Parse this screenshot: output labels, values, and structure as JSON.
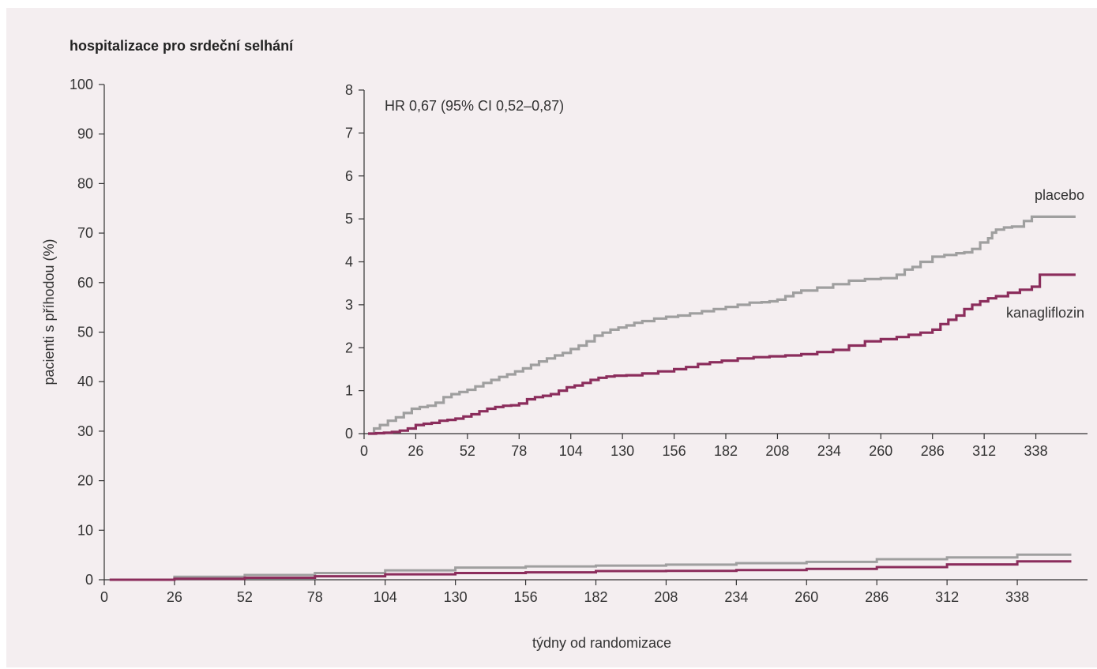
{
  "colors": {
    "background": "#f4eef0",
    "placebo": "#9f9f9f",
    "kanagliflozin": "#8b2d5c",
    "axis": "#333333"
  },
  "chart_data": [
    {
      "type": "line",
      "role": "main",
      "title": "hospitalizace pro srdeční selhání",
      "xlabel": "týdny od randomizace",
      "ylabel": "pacienti s  příhodou (%)",
      "xlim": [
        0,
        364
      ],
      "ylim": [
        0,
        100
      ],
      "xticks": [
        0,
        26,
        52,
        78,
        104,
        130,
        156,
        182,
        208,
        234,
        260,
        286,
        312,
        338
      ],
      "yticks": [
        0,
        10,
        20,
        30,
        40,
        50,
        60,
        70,
        80,
        90,
        100
      ],
      "grid": false,
      "series": [
        {
          "key": "placebo",
          "x": [
            2,
            26,
            52,
            78,
            104,
            130,
            156,
            182,
            208,
            234,
            260,
            286,
            312,
            338,
            358
          ],
          "y": [
            0,
            0.6,
            0.95,
            1.35,
            1.9,
            2.45,
            2.7,
            2.85,
            3.05,
            3.35,
            3.6,
            4.15,
            4.5,
            5.05,
            5.05
          ]
        },
        {
          "key": "kanagliflozin",
          "x": [
            2,
            26,
            52,
            78,
            104,
            130,
            156,
            182,
            208,
            234,
            260,
            286,
            312,
            338,
            358
          ],
          "y": [
            0,
            0.2,
            0.4,
            0.7,
            1.1,
            1.35,
            1.5,
            1.75,
            1.8,
            1.95,
            2.2,
            2.55,
            3.1,
            3.7,
            3.7
          ]
        }
      ]
    },
    {
      "type": "line",
      "role": "inset",
      "annotation": "HR 0,67 (95% CI 0,52–0,87)",
      "xlim": [
        0,
        364
      ],
      "ylim": [
        0,
        8
      ],
      "xticks": [
        0,
        26,
        52,
        78,
        104,
        130,
        156,
        182,
        208,
        234,
        260,
        286,
        312,
        338
      ],
      "yticks": [
        0,
        1,
        2,
        3,
        4,
        5,
        6,
        7,
        8
      ],
      "grid": false,
      "series": [
        {
          "key": "placebo",
          "name": "placebo",
          "x": [
            2,
            5,
            8,
            12,
            16,
            20,
            24,
            28,
            32,
            36,
            40,
            44,
            48,
            52,
            56,
            60,
            64,
            68,
            72,
            76,
            80,
            84,
            88,
            92,
            96,
            100,
            104,
            108,
            112,
            116,
            120,
            124,
            128,
            132,
            136,
            140,
            146,
            152,
            158,
            164,
            170,
            176,
            182,
            188,
            194,
            200,
            204,
            208,
            212,
            216,
            220,
            228,
            236,
            244,
            252,
            260,
            268,
            272,
            276,
            280,
            286,
            292,
            298,
            302,
            306,
            310,
            314,
            316,
            318,
            322,
            326,
            332,
            336,
            344,
            348,
            358
          ],
          "y": [
            0,
            0.12,
            0.2,
            0.3,
            0.38,
            0.48,
            0.58,
            0.62,
            0.65,
            0.72,
            0.85,
            0.92,
            0.97,
            1.02,
            1.1,
            1.18,
            1.25,
            1.32,
            1.38,
            1.45,
            1.52,
            1.6,
            1.68,
            1.75,
            1.82,
            1.88,
            1.97,
            2.05,
            2.15,
            2.28,
            2.35,
            2.42,
            2.47,
            2.52,
            2.58,
            2.62,
            2.68,
            2.72,
            2.75,
            2.8,
            2.85,
            2.9,
            2.95,
            3.0,
            3.05,
            3.06,
            3.08,
            3.12,
            3.2,
            3.28,
            3.33,
            3.4,
            3.48,
            3.56,
            3.6,
            3.62,
            3.7,
            3.82,
            3.88,
            4.0,
            4.12,
            4.16,
            4.2,
            4.22,
            4.3,
            4.45,
            4.55,
            4.68,
            4.75,
            4.8,
            4.82,
            4.95,
            5.05,
            5.05,
            5.05,
            5.05
          ]
        },
        {
          "key": "kanagliflozin",
          "name": "kanagliflozin",
          "x": [
            2,
            6,
            10,
            14,
            18,
            22,
            26,
            30,
            34,
            38,
            42,
            46,
            50,
            54,
            58,
            62,
            66,
            70,
            74,
            78,
            82,
            86,
            90,
            94,
            98,
            102,
            106,
            110,
            114,
            118,
            122,
            126,
            132,
            140,
            148,
            156,
            162,
            168,
            174,
            180,
            188,
            196,
            204,
            212,
            220,
            228,
            236,
            244,
            252,
            260,
            268,
            274,
            280,
            286,
            290,
            294,
            298,
            302,
            306,
            310,
            314,
            318,
            324,
            330,
            336,
            340,
            344,
            358
          ],
          "y": [
            0,
            0.01,
            0.02,
            0.04,
            0.07,
            0.12,
            0.2,
            0.23,
            0.25,
            0.3,
            0.32,
            0.35,
            0.4,
            0.45,
            0.52,
            0.58,
            0.62,
            0.65,
            0.66,
            0.7,
            0.8,
            0.85,
            0.88,
            0.92,
            1.0,
            1.08,
            1.12,
            1.18,
            1.25,
            1.3,
            1.33,
            1.35,
            1.36,
            1.4,
            1.45,
            1.5,
            1.55,
            1.62,
            1.66,
            1.7,
            1.75,
            1.78,
            1.8,
            1.82,
            1.85,
            1.9,
            1.95,
            2.05,
            2.15,
            2.2,
            2.25,
            2.3,
            2.35,
            2.42,
            2.55,
            2.65,
            2.75,
            2.9,
            3.0,
            3.08,
            3.15,
            3.2,
            3.28,
            3.35,
            3.42,
            3.7,
            3.7,
            3.7
          ]
        }
      ]
    }
  ]
}
